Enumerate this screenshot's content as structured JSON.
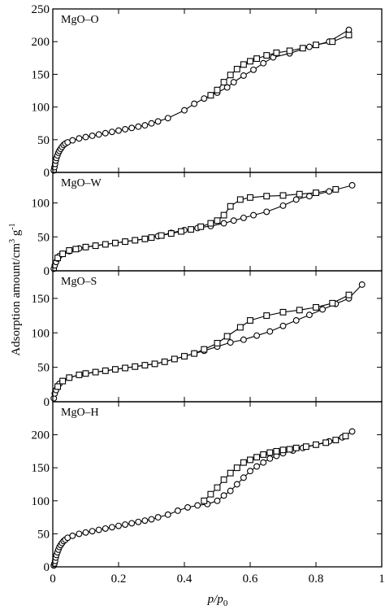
{
  "ylabel": "Adsorption amount/cm",
  "ylabel_sup1": "3",
  "ylabel_unit": " g",
  "ylabel_sup2": "-1",
  "xlabel_p": "p/p",
  "xlabel_sub": "0",
  "chart_data": [
    {
      "type": "line",
      "title": "MgO–O",
      "xlim": [
        0,
        1
      ],
      "ylim": [
        0,
        250
      ],
      "xticks": [
        0,
        0.2,
        0.4,
        0.6,
        0.8,
        1
      ],
      "xtick_labels": [
        "0",
        "0.2",
        "0.4",
        "0.6",
        "0.8",
        "1"
      ],
      "yticks": [
        0,
        50,
        100,
        150,
        200,
        250
      ],
      "ytick_labels": [
        "0",
        "50",
        "100",
        "150",
        "200",
        "250"
      ],
      "series": [
        {
          "marker": "circle",
          "x": [
            0.003,
            0.005,
            0.007,
            0.009,
            0.011,
            0.014,
            0.017,
            0.02,
            0.024,
            0.028,
            0.033,
            0.038,
            0.045,
            0.06,
            0.08,
            0.1,
            0.12,
            0.14,
            0.16,
            0.18,
            0.2,
            0.22,
            0.24,
            0.26,
            0.28,
            0.3,
            0.32,
            0.35,
            0.4,
            0.43,
            0.46,
            0.48,
            0.5,
            0.53,
            0.55,
            0.58,
            0.61,
            0.64,
            0.67,
            0.72,
            0.78,
            0.84,
            0.9
          ],
          "y": [
            3,
            8,
            13,
            18,
            22,
            26,
            30,
            33,
            36,
            39,
            42,
            44,
            46,
            49,
            52,
            54,
            56,
            58,
            60,
            62,
            64,
            66,
            68,
            70,
            72,
            75,
            78,
            83,
            95,
            105,
            113,
            118,
            122,
            130,
            138,
            148,
            157,
            167,
            176,
            182,
            192,
            200,
            218
          ]
        },
        {
          "marker": "square",
          "x": [
            0.48,
            0.5,
            0.52,
            0.54,
            0.56,
            0.58,
            0.6,
            0.62,
            0.65,
            0.68,
            0.72,
            0.76,
            0.8,
            0.85,
            0.9
          ],
          "y": [
            118,
            126,
            138,
            149,
            158,
            165,
            170,
            174,
            179,
            183,
            186,
            190,
            195,
            200,
            210
          ]
        }
      ]
    },
    {
      "type": "line",
      "title": "MgO–W",
      "xlim": [
        0,
        1
      ],
      "ylim": [
        0,
        145
      ],
      "xticks": [
        0,
        0.2,
        0.4,
        0.6,
        0.8,
        1
      ],
      "xtick_labels": [],
      "yticks": [
        0,
        50,
        100
      ],
      "ytick_labels": [
        "0",
        "50",
        "100"
      ],
      "series": [
        {
          "marker": "circle",
          "x": [
            0.003,
            0.006,
            0.01,
            0.015,
            0.02,
            0.03,
            0.05,
            0.08,
            0.1,
            0.13,
            0.16,
            0.19,
            0.22,
            0.25,
            0.28,
            0.32,
            0.36,
            0.4,
            0.44,
            0.48,
            0.52,
            0.55,
            0.58,
            0.61,
            0.65,
            0.7,
            0.74,
            0.78,
            0.84,
            0.91
          ],
          "y": [
            3,
            8,
            13,
            18,
            22,
            25,
            29,
            33,
            35,
            37,
            39,
            41,
            43,
            45,
            47,
            51,
            56,
            60,
            63,
            66,
            70,
            74,
            78,
            82,
            87,
            96,
            105,
            110,
            117,
            126
          ]
        },
        {
          "marker": "square",
          "x": [
            0.015,
            0.03,
            0.05,
            0.07,
            0.1,
            0.13,
            0.16,
            0.19,
            0.22,
            0.25,
            0.28,
            0.3,
            0.33,
            0.36,
            0.39,
            0.42,
            0.45,
            0.48,
            0.5,
            0.52,
            0.54,
            0.57,
            0.6,
            0.65,
            0.7,
            0.75,
            0.8,
            0.86
          ],
          "y": [
            19,
            25,
            30,
            32,
            35,
            37,
            39,
            41,
            43,
            45,
            47,
            49,
            52,
            55,
            58,
            61,
            65,
            70,
            74,
            82,
            95,
            105,
            108,
            110,
            111,
            113,
            115,
            120
          ]
        }
      ]
    },
    {
      "type": "line",
      "title": "MgO–S",
      "xlim": [
        0,
        1
      ],
      "ylim": [
        0,
        190
      ],
      "xticks": [
        0,
        0.2,
        0.4,
        0.6,
        0.8,
        1
      ],
      "xtick_labels": [],
      "yticks": [
        0,
        50,
        100,
        150
      ],
      "ytick_labels": [
        "0",
        "50",
        "100",
        "150"
      ],
      "series": [
        {
          "marker": "circle",
          "x": [
            0.003,
            0.006,
            0.01,
            0.015,
            0.02,
            0.03,
            0.05,
            0.08,
            0.1,
            0.13,
            0.16,
            0.19,
            0.22,
            0.25,
            0.28,
            0.31,
            0.34,
            0.37,
            0.4,
            0.43,
            0.46,
            0.5,
            0.54,
            0.58,
            0.62,
            0.66,
            0.7,
            0.74,
            0.78,
            0.82,
            0.86,
            0.9,
            0.94
          ],
          "y": [
            5,
            12,
            17,
            22,
            26,
            30,
            35,
            39,
            41,
            43,
            45,
            47,
            49,
            51,
            53,
            55,
            58,
            62,
            66,
            70,
            74,
            80,
            86,
            90,
            96,
            102,
            110,
            118,
            126,
            134,
            142,
            150,
            170
          ]
        },
        {
          "marker": "square",
          "x": [
            0.015,
            0.03,
            0.05,
            0.08,
            0.1,
            0.13,
            0.16,
            0.19,
            0.22,
            0.25,
            0.28,
            0.31,
            0.34,
            0.37,
            0.4,
            0.43,
            0.46,
            0.5,
            0.53,
            0.57,
            0.6,
            0.65,
            0.7,
            0.75,
            0.8,
            0.85,
            0.9
          ],
          "y": [
            22,
            30,
            35,
            39,
            41,
            43,
            45,
            47,
            49,
            51,
            53,
            55,
            58,
            62,
            66,
            70,
            76,
            85,
            95,
            108,
            118,
            125,
            130,
            133,
            137,
            143,
            155
          ]
        }
      ]
    },
    {
      "type": "line",
      "title": "MgO–H",
      "xlim": [
        0,
        1
      ],
      "ylim": [
        0,
        250
      ],
      "xticks": [
        0,
        0.2,
        0.4,
        0.6,
        0.8,
        1
      ],
      "xtick_labels": [
        "0",
        "0.2",
        "0.4",
        "0.6",
        "0.8",
        "1"
      ],
      "yticks": [
        0,
        50,
        100,
        150,
        200
      ],
      "ytick_labels": [
        "0",
        "50",
        "100",
        "150",
        "200"
      ],
      "series": [
        {
          "marker": "circle",
          "x": [
            0.003,
            0.005,
            0.007,
            0.009,
            0.011,
            0.014,
            0.017,
            0.02,
            0.024,
            0.028,
            0.033,
            0.038,
            0.045,
            0.06,
            0.08,
            0.1,
            0.12,
            0.14,
            0.16,
            0.18,
            0.2,
            0.22,
            0.24,
            0.26,
            0.28,
            0.3,
            0.32,
            0.35,
            0.38,
            0.41,
            0.44,
            0.47,
            0.5,
            0.52,
            0.54,
            0.56,
            0.58,
            0.6,
            0.62,
            0.64,
            0.66,
            0.68,
            0.7,
            0.73,
            0.76,
            0.8,
            0.84,
            0.88,
            0.91
          ],
          "y": [
            2,
            5,
            9,
            14,
            18,
            22,
            26,
            30,
            33,
            36,
            39,
            41,
            44,
            47,
            50,
            52,
            54,
            56,
            58,
            60,
            62,
            64,
            66,
            68,
            70,
            72,
            75,
            79,
            85,
            90,
            93,
            95,
            100,
            108,
            115,
            125,
            135,
            145,
            152,
            158,
            164,
            168,
            172,
            176,
            180,
            185,
            190,
            196,
            205
          ]
        },
        {
          "marker": "square",
          "x": [
            0.46,
            0.48,
            0.5,
            0.52,
            0.54,
            0.56,
            0.58,
            0.6,
            0.62,
            0.64,
            0.66,
            0.68,
            0.7,
            0.72,
            0.74,
            0.77,
            0.8,
            0.83,
            0.86,
            0.89
          ],
          "y": [
            100,
            110,
            120,
            132,
            142,
            150,
            158,
            162,
            166,
            170,
            173,
            175,
            177,
            178,
            180,
            182,
            185,
            188,
            192,
            198
          ]
        }
      ]
    }
  ]
}
